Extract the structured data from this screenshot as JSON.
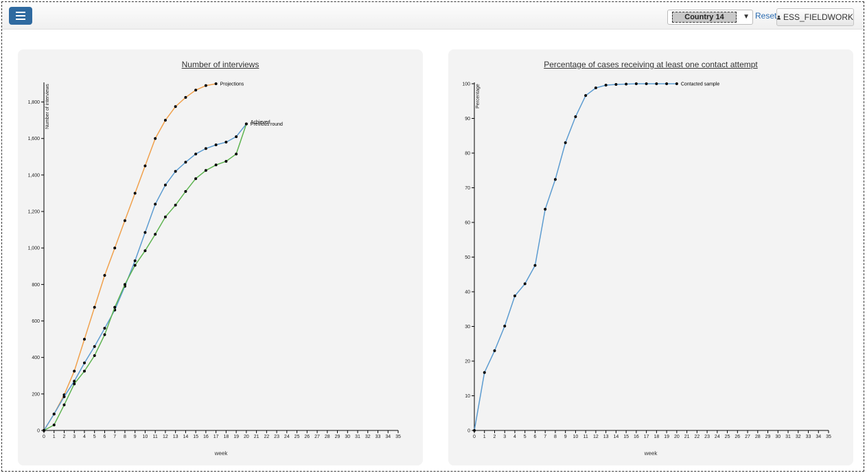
{
  "topbar": {
    "country": "Country 14",
    "reset": "Reset",
    "user": "ESS_FIELDWORK"
  },
  "chart_data": [
    {
      "type": "line",
      "title": "Number of interviews",
      "xlabel": "week",
      "ylabel": "Number of interviews",
      "xlim": [
        0,
        35
      ],
      "ylim": [
        0,
        1900
      ],
      "x_ticks": [
        0,
        1,
        2,
        3,
        4,
        5,
        6,
        7,
        8,
        9,
        10,
        11,
        12,
        13,
        14,
        15,
        16,
        17,
        18,
        19,
        20,
        21,
        22,
        23,
        24,
        25,
        26,
        27,
        28,
        29,
        30,
        31,
        32,
        33,
        34,
        35
      ],
      "y_ticks": [
        0,
        200,
        400,
        600,
        800,
        1000,
        1200,
        1400,
        1600,
        1800
      ],
      "grid": false,
      "series": [
        {
          "name": "Projections",
          "color": "#f0a04b",
          "x": [
            0,
            1,
            2,
            3,
            4,
            5,
            6,
            7,
            8,
            9,
            10,
            11,
            12,
            13,
            14,
            15,
            16,
            17
          ],
          "values": [
            0,
            90,
            195,
            325,
            500,
            675,
            850,
            1000,
            1150,
            1300,
            1450,
            1600,
            1700,
            1775,
            1825,
            1865,
            1890,
            1900
          ]
        },
        {
          "name": "Previous round",
          "color": "#5b9bd0",
          "x": [
            0,
            1,
            2,
            3,
            4,
            5,
            6,
            7,
            8,
            9,
            10,
            11,
            12,
            13,
            14,
            15,
            16,
            17,
            18,
            19,
            20
          ],
          "values": [
            0,
            90,
            185,
            270,
            370,
            460,
            560,
            660,
            790,
            930,
            1085,
            1240,
            1345,
            1420,
            1470,
            1515,
            1545,
            1565,
            1580,
            1610,
            1680
          ]
        },
        {
          "name": "Achieved",
          "color": "#5db34f",
          "x": [
            0,
            1,
            2,
            3,
            4,
            5,
            6,
            7,
            8,
            9,
            10,
            11,
            12,
            13,
            14,
            15,
            16,
            17,
            18,
            19,
            20
          ],
          "values": [
            0,
            30,
            140,
            255,
            325,
            410,
            525,
            675,
            800,
            905,
            985,
            1075,
            1170,
            1235,
            1310,
            1380,
            1425,
            1455,
            1475,
            1515,
            1680
          ]
        }
      ]
    },
    {
      "type": "line",
      "title": "Percentage of cases receiving at least one contact attempt",
      "xlabel": "week",
      "ylabel": "Percentage",
      "xlim": [
        0,
        35
      ],
      "ylim": [
        0,
        100
      ],
      "x_ticks": [
        0,
        1,
        2,
        3,
        4,
        5,
        6,
        7,
        8,
        9,
        10,
        11,
        12,
        13,
        14,
        15,
        16,
        17,
        18,
        19,
        20,
        21,
        22,
        23,
        24,
        25,
        26,
        27,
        28,
        29,
        30,
        31,
        32,
        33,
        34,
        35
      ],
      "y_ticks": [
        0,
        10,
        20,
        30,
        40,
        50,
        60,
        70,
        80,
        90,
        100
      ],
      "grid": false,
      "series": [
        {
          "name": "Contacted sample",
          "color": "#5b9bd0",
          "x": [
            0,
            1,
            2,
            3,
            4,
            5,
            6,
            7,
            8,
            9,
            10,
            11,
            12,
            13,
            14,
            15,
            16,
            17,
            18,
            19,
            20
          ],
          "values": [
            0,
            16.7,
            23,
            30.1,
            38.8,
            42.3,
            47.6,
            63.8,
            72.4,
            83,
            90.5,
            96.6,
            98.8,
            99.6,
            99.8,
            99.9,
            100,
            100,
            100,
            100,
            100
          ]
        }
      ]
    }
  ]
}
